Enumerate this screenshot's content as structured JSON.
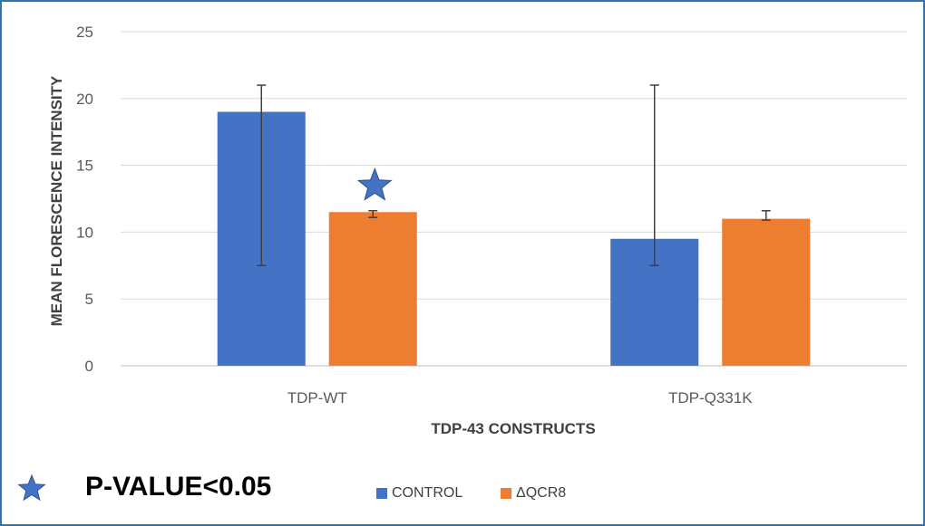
{
  "chart_data": {
    "type": "bar",
    "categories": [
      "TDP-WT",
      "TDP-Q331K"
    ],
    "series": [
      {
        "name": "CONTROL",
        "values": [
          19.0,
          9.5
        ],
        "error_low": [
          7.5,
          7.5
        ],
        "error_high": [
          21.0,
          21.0
        ]
      },
      {
        "name": "ΔQCR8",
        "values": [
          11.5,
          11.0
        ],
        "error_low": [
          11.1,
          10.9
        ],
        "error_high": [
          11.6,
          11.6
        ]
      }
    ],
    "title": "",
    "xlabel": "TDP-43 CONSTRUCTS",
    "ylabel": "MEAN FLORESCENCE INTENSITY",
    "ylim": [
      0,
      25
    ],
    "yticks": [
      "0",
      "5",
      "10",
      "15",
      "20",
      "25"
    ],
    "grid": true,
    "legend": "bottom",
    "significance_marker": {
      "category": "TDP-WT",
      "series": "ΔQCR8",
      "symbol": "star"
    }
  },
  "colors": {
    "series_control": "#4472c4",
    "series_qcr8": "#ed7d31",
    "star": "#4472c4",
    "frame": "#2e75b6"
  },
  "annotation": {
    "star_icon": "star-icon",
    "text": "P-VALUE<0.05"
  }
}
